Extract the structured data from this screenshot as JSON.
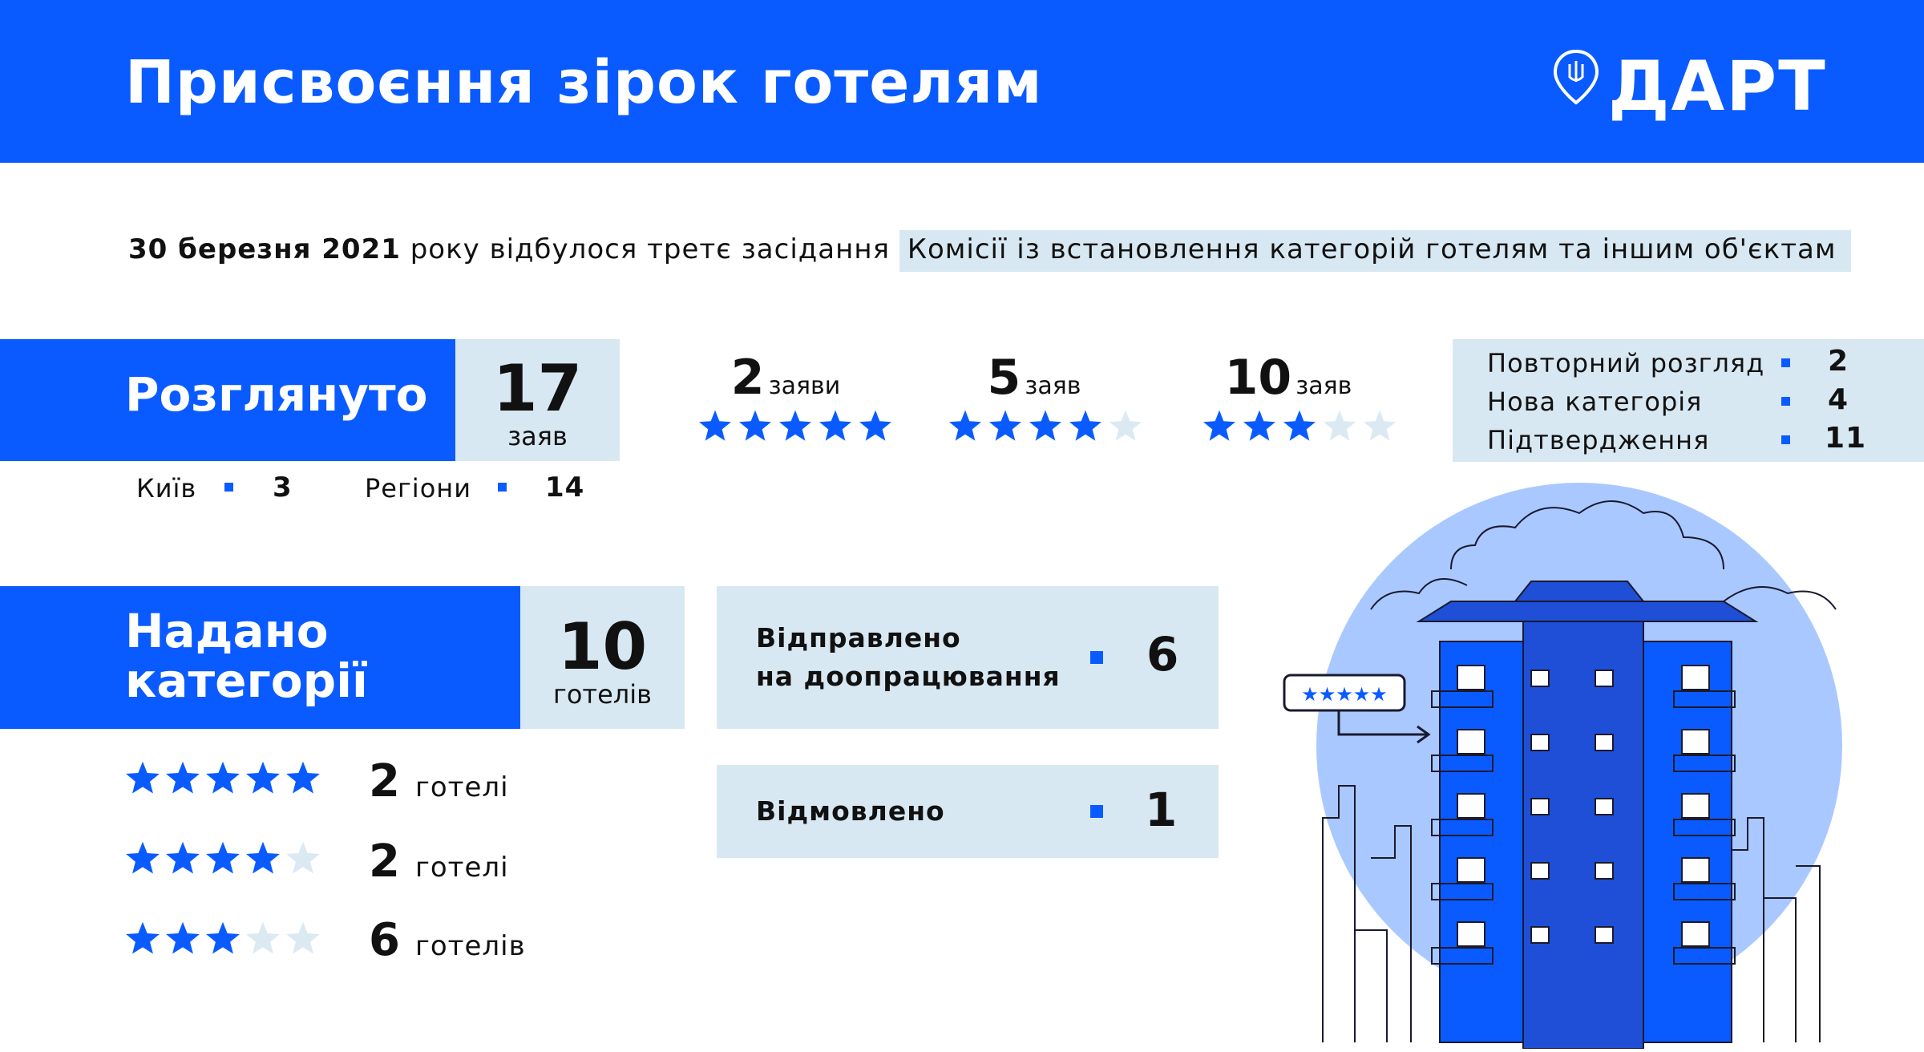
{
  "header": {
    "title": "Присвоєння зірок готелям",
    "logo_text": "ДАРТ"
  },
  "intro": {
    "date": "30 березня 2021",
    "text_mid": " року відбулося третє засідання ",
    "commission": "Комісії із встановлення категорій готелям та іншим об'єктам"
  },
  "reviewed": {
    "label": "Розглянуто",
    "count": "17",
    "unit": "заяв",
    "kyiv_label": "Київ",
    "kyiv_value": "3",
    "regions_label": "Регіони",
    "regions_value": "14"
  },
  "applications": [
    {
      "count": "2",
      "unit": "заяви",
      "stars": 5
    },
    {
      "count": "5",
      "unit": "заяв",
      "stars": 4
    },
    {
      "count": "10",
      "unit": "заяв",
      "stars": 3
    }
  ],
  "review_types": [
    {
      "label": "Повторний розгляд",
      "value": "2"
    },
    {
      "label": "Нова категорія",
      "value": "4"
    },
    {
      "label": "Підтвердження",
      "value": "11"
    }
  ],
  "granted": {
    "label_line1": "Надано",
    "label_line2": "категорії",
    "count": "10",
    "unit": "готелів"
  },
  "hotels": [
    {
      "stars": 5,
      "count": "2",
      "unit": "готелі"
    },
    {
      "stars": 4,
      "count": "2",
      "unit": "готелі"
    },
    {
      "stars": 3,
      "count": "6",
      "unit": "готелів"
    }
  ],
  "outcomes": {
    "revision_line1": "Відправлено",
    "revision_line2": "на доопрацювання",
    "revision_value": "6",
    "rejected_label": "Відмовлено",
    "rejected_value": "1"
  },
  "colors": {
    "brand_blue": "#0a5bff",
    "light_blue": "#d8e8f2",
    "star_empty": "#dbe9f3",
    "circle": "#a9c8ff"
  }
}
